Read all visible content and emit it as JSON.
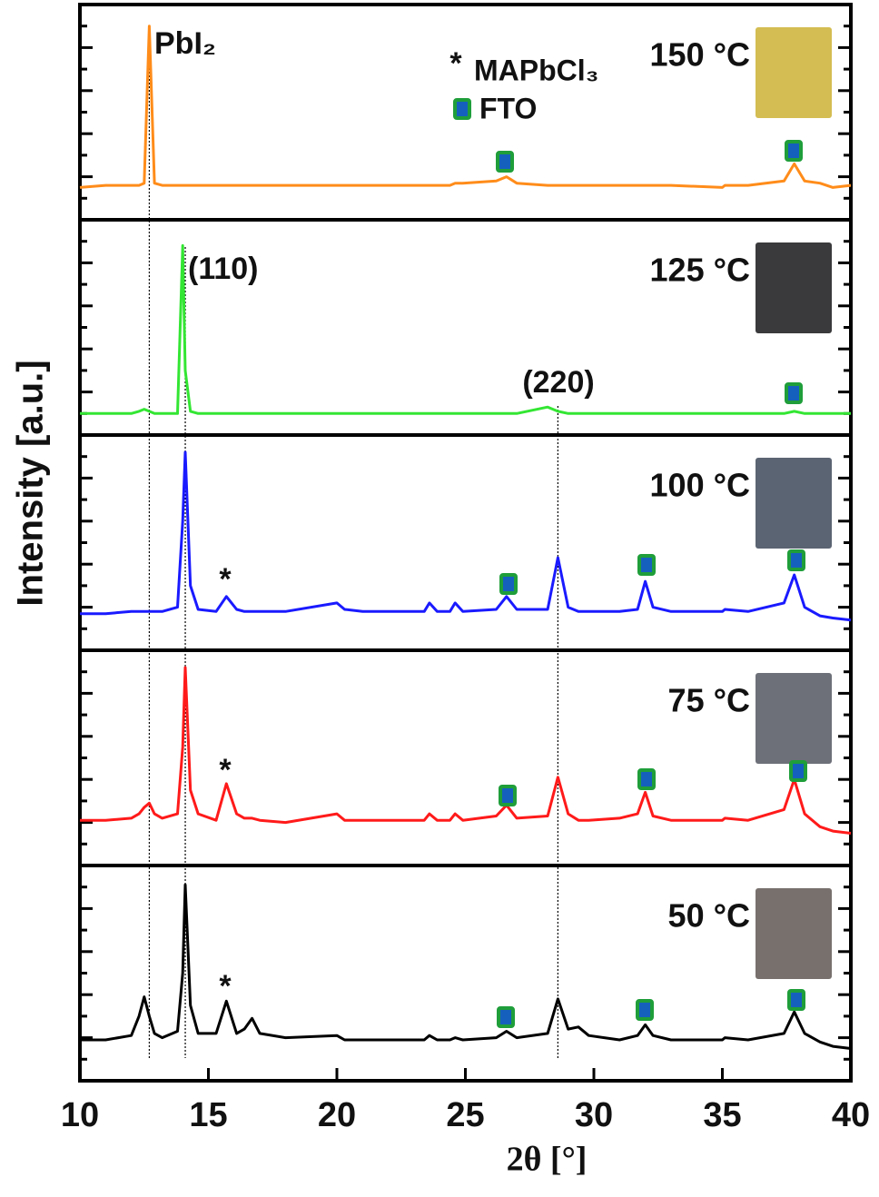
{
  "chart_data": {
    "type": "line",
    "xlabel": "2θ [°]",
    "ylabel": "Intensity [a.u.]",
    "xlim": [
      10,
      40
    ],
    "xticks": [
      10,
      15,
      20,
      25,
      30,
      35,
      40
    ],
    "ylim": [
      0,
      100
    ],
    "yticks": [
      10,
      20,
      30,
      40,
      50,
      60,
      70,
      80,
      90
    ],
    "x": [
      10,
      11,
      12,
      12.3,
      12.5,
      12.7,
      12.9,
      13.2,
      13.8,
      14.0,
      14.1,
      14.3,
      14.6,
      15.3,
      15.7,
      16.1,
      16.4,
      16.7,
      17.0,
      18,
      20,
      20.3,
      21,
      23.4,
      23.6,
      23.9,
      24.4,
      24.6,
      24.9,
      26.2,
      26.6,
      27.0,
      28.2,
      28.6,
      29.0,
      29.4,
      29.8,
      31,
      31.7,
      32.0,
      32.3,
      33,
      35,
      35.1,
      36,
      37.4,
      37.8,
      38.2,
      38.8,
      39.3,
      40
    ],
    "series": [
      {
        "name": "150 °C",
        "color": "#ff8c1a",
        "sample_color": "#d4bd52",
        "values": [
          15,
          16,
          16,
          16,
          17,
          90,
          17,
          16,
          16,
          16,
          16,
          16,
          16,
          16,
          16,
          16,
          16,
          16,
          16,
          16,
          16,
          16,
          16,
          16,
          16,
          16,
          16,
          17,
          17,
          18,
          20,
          17,
          16,
          16,
          16,
          16,
          16,
          16,
          16,
          16,
          16,
          16,
          15,
          16,
          16,
          18,
          26,
          18,
          17,
          15,
          16
        ]
      },
      {
        "name": "125 °C",
        "color": "#33e633",
        "sample_color": "#3a3a3c",
        "values": [
          10,
          10,
          10,
          11,
          12,
          11,
          10,
          10,
          10,
          88,
          30,
          11,
          10,
          10,
          10,
          10,
          10,
          10,
          10,
          10,
          10,
          10,
          10,
          10,
          10,
          10,
          10,
          10,
          10,
          10,
          10,
          10,
          13,
          11,
          10,
          10,
          10,
          10,
          10,
          10,
          10,
          10,
          10,
          10,
          10,
          10,
          11,
          10,
          10,
          10,
          10
        ]
      },
      {
        "name": "100 °C",
        "color": "#1a1aff",
        "sample_color": "#5b6472",
        "values": [
          17,
          17,
          18,
          18,
          18,
          18,
          18,
          18,
          20,
          60,
          92,
          30,
          19,
          18,
          25,
          19,
          18,
          18,
          18,
          18,
          22,
          19,
          18,
          18,
          22,
          18,
          18,
          22,
          18,
          19,
          25,
          19,
          19,
          43,
          20,
          18,
          18,
          18,
          19,
          32,
          20,
          18,
          18,
          19,
          18,
          22,
          35,
          20,
          16,
          15,
          14
        ]
      },
      {
        "name": "75 °C",
        "color": "#ff1a1a",
        "sample_color": "#6d7078",
        "values": [
          21,
          21,
          22,
          24,
          27,
          29,
          24,
          22,
          24,
          55,
          92,
          35,
          24,
          21,
          38,
          24,
          22,
          22,
          21,
          20,
          24,
          21,
          21,
          21,
          24,
          21,
          21,
          24,
          21,
          23,
          28,
          22,
          23,
          41,
          24,
          21,
          21,
          22,
          24,
          34,
          23,
          21,
          21,
          22,
          21,
          26,
          40,
          24,
          18,
          16,
          15
        ]
      },
      {
        "name": "50 °C",
        "color": "#000000",
        "sample_color": "#77706d",
        "values": [
          19,
          19,
          21,
          30,
          39,
          30,
          22,
          20,
          23,
          50,
          91,
          35,
          22,
          22,
          37,
          22,
          24,
          29,
          22,
          20,
          21,
          19,
          19,
          19,
          21,
          19,
          19,
          20,
          19,
          20,
          23,
          20,
          22,
          38,
          24,
          25,
          21,
          19,
          21,
          26,
          21,
          19,
          19,
          20,
          19,
          22,
          32,
          22,
          18,
          16,
          15
        ]
      }
    ],
    "reference_lines": [
      12.7,
      14.1,
      28.6
    ],
    "annotations": [
      "PbI₂",
      "(110)",
      "(220)"
    ],
    "asterisk": "*",
    "legend": [
      {
        "symbol": "*",
        "label": "MAPbCl₃"
      },
      {
        "label": "FTO"
      }
    ],
    "fto_color": "#1f9e3a"
  }
}
